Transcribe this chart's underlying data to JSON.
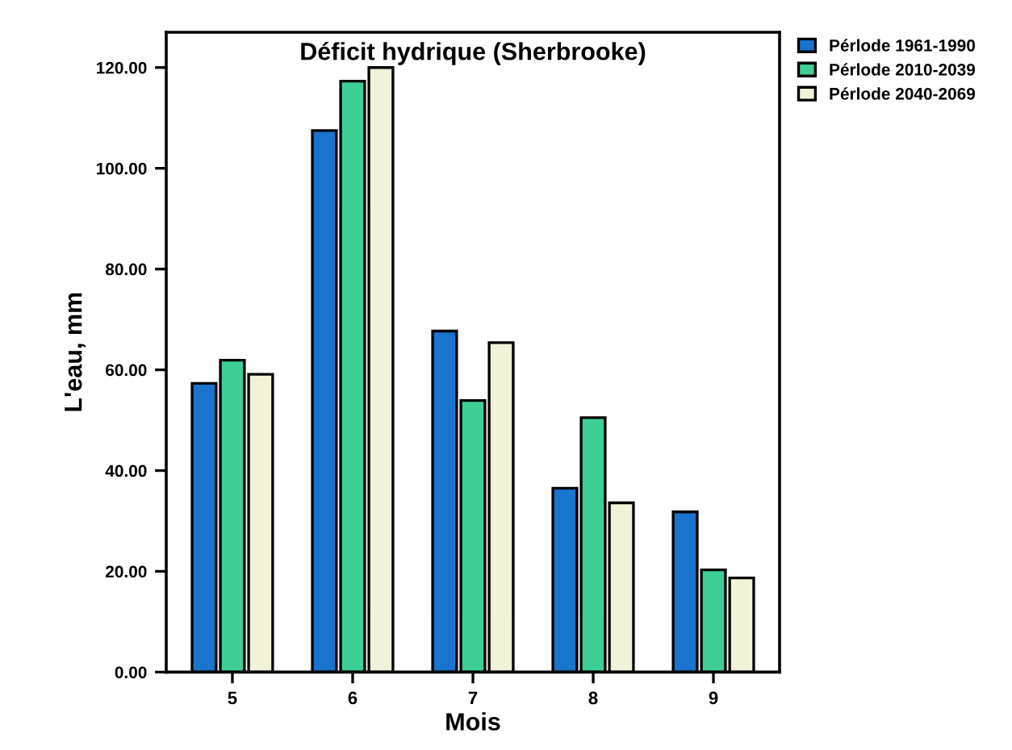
{
  "chart_data": {
    "type": "bar",
    "title": "Déficit hydrique (Sherbrooke)",
    "xlabel": "Mois",
    "ylabel": "L'eau, mm",
    "categories": [
      "5",
      "6",
      "7",
      "8",
      "9"
    ],
    "series": [
      {
        "name": "Pérlode 1961-1990",
        "color": "#1874cd",
        "values": [
          57.3,
          107.5,
          67.7,
          36.5,
          31.8
        ]
      },
      {
        "name": "Pérlode 2010-2039",
        "color": "#3ecf96",
        "values": [
          61.9,
          117.3,
          53.9,
          50.5,
          20.3
        ]
      },
      {
        "name": "Pérlode 2040-2069",
        "color": "#f2f2d8",
        "values": [
          59.1,
          120.0,
          65.4,
          33.6,
          18.7
        ]
      }
    ],
    "ylim": [
      0,
      127
    ],
    "yticks": [
      {
        "value": 0,
        "label": "0.00"
      },
      {
        "value": 20,
        "label": "20.00"
      },
      {
        "value": 40,
        "label": "40.00"
      },
      {
        "value": 60,
        "label": "60.00"
      },
      {
        "value": 80,
        "label": "80.00"
      },
      {
        "value": 100,
        "label": "100.00"
      },
      {
        "value": 120,
        "label": "120.00"
      }
    ],
    "legend": "top right",
    "grid": false
  }
}
